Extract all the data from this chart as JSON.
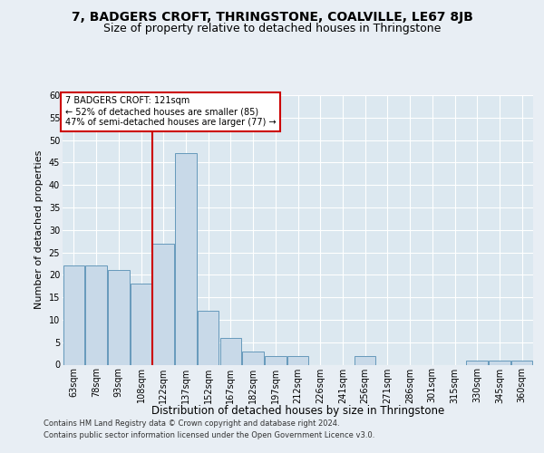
{
  "title1": "7, BADGERS CROFT, THRINGSTONE, COALVILLE, LE67 8JB",
  "title2": "Size of property relative to detached houses in Thringstone",
  "xlabel": "Distribution of detached houses by size in Thringstone",
  "ylabel": "Number of detached properties",
  "footer1": "Contains HM Land Registry data © Crown copyright and database right 2024.",
  "footer2": "Contains public sector information licensed under the Open Government Licence v3.0.",
  "bins": [
    "63sqm",
    "78sqm",
    "93sqm",
    "108sqm",
    "122sqm",
    "137sqm",
    "152sqm",
    "167sqm",
    "182sqm",
    "197sqm",
    "212sqm",
    "226sqm",
    "241sqm",
    "256sqm",
    "271sqm",
    "286sqm",
    "301sqm",
    "315sqm",
    "330sqm",
    "345sqm",
    "360sqm"
  ],
  "values": [
    22,
    22,
    21,
    18,
    27,
    47,
    12,
    6,
    3,
    2,
    2,
    0,
    0,
    2,
    0,
    0,
    0,
    0,
    1,
    1,
    1
  ],
  "bar_color": "#c8d9e8",
  "bar_edge_color": "#6699bb",
  "red_line_x": 4,
  "annot_line1": "7 BADGERS CROFT: 121sqm",
  "annot_line2": "← 52% of detached houses are smaller (85)",
  "annot_line3": "47% of semi-detached houses are larger (77) →",
  "red_line_color": "#cc0000",
  "annot_box_color": "#ffffff",
  "annot_box_edge": "#cc0000",
  "ylim": [
    0,
    60
  ],
  "yticks": [
    0,
    5,
    10,
    15,
    20,
    25,
    30,
    35,
    40,
    45,
    50,
    55,
    60
  ],
  "bg_color": "#e8eef4",
  "plot_bg": "#dce8f0",
  "title1_fontsize": 10,
  "title2_fontsize": 9,
  "xlabel_fontsize": 8.5,
  "ylabel_fontsize": 8,
  "footer_fontsize": 6,
  "tick_fontsize": 7,
  "annot_fontsize": 7
}
